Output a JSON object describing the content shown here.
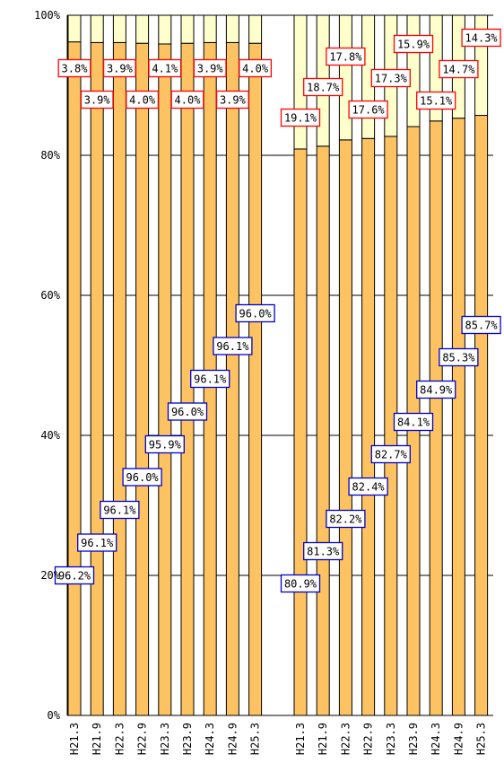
{
  "chart_data": {
    "type": "bar",
    "stacked": true,
    "percent": true,
    "ylim": [
      0,
      100
    ],
    "yticks": [
      "0%",
      "20%",
      "40%",
      "60%",
      "80%",
      "100%"
    ],
    "grid": true,
    "colors": {
      "lower_fill": "#FDC363",
      "upper_fill": "#FFFFCC",
      "bar_stroke": "#000000",
      "lower_label_border": "#0000CC",
      "upper_label_border": "#FF0000"
    },
    "groups": [
      {
        "categories": [
          "H21.3",
          "H21.9",
          "H22.3",
          "H22.9",
          "H23.3",
          "H23.9",
          "H24.3",
          "H24.9",
          "H25.3"
        ],
        "series": [
          {
            "values": [
              96.2,
              96.1,
              96.1,
              96.0,
              95.9,
              96.0,
              96.1,
              96.1,
              96.0
            ],
            "labels": [
              "96.2%",
              "96.1%",
              "96.1%",
              "96.0%",
              "95.9%",
              "96.0%",
              "96.1%",
              "96.1%",
              "96.0%"
            ]
          },
          {
            "values": [
              3.8,
              3.9,
              3.9,
              4.0,
              4.1,
              4.0,
              3.9,
              3.9,
              4.0
            ],
            "labels": [
              "3.8%",
              "3.9%",
              "3.9%",
              "4.0%",
              "4.1%",
              "4.0%",
              "3.9%",
              "3.9%",
              "4.0%"
            ]
          }
        ]
      },
      {
        "categories": [
          "H21.3",
          "H21.9",
          "H22.3",
          "H22.9",
          "H23.3",
          "H23.9",
          "H24.3",
          "H24.9",
          "H25.3"
        ],
        "series": [
          {
            "values": [
              80.9,
              81.3,
              82.2,
              82.4,
              82.7,
              84.1,
              84.9,
              85.3,
              85.7
            ],
            "labels": [
              "80.9%",
              "81.3%",
              "82.2%",
              "82.4%",
              "82.7%",
              "84.1%",
              "84.9%",
              "85.3%",
              "85.7%"
            ]
          },
          {
            "values": [
              19.1,
              18.7,
              17.8,
              17.6,
              17.3,
              15.9,
              15.1,
              14.7,
              14.3
            ],
            "labels": [
              "19.1%",
              "18.7%",
              "17.8%",
              "17.6%",
              "17.3%",
              "15.9%",
              "15.1%",
              "14.7%",
              "14.3%"
            ]
          }
        ]
      }
    ]
  }
}
